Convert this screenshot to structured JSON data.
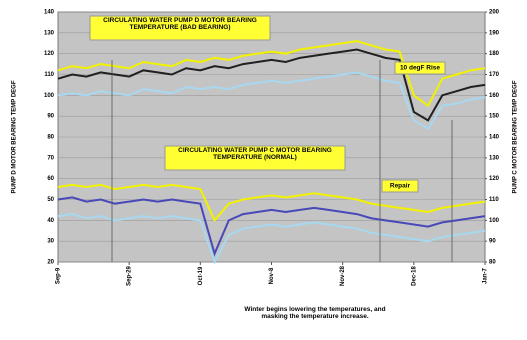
{
  "chart_data": {
    "type": "line",
    "y_label": "PUMP D MOTOR BEARING TEMP DEGF",
    "y2_label": "PUMP C MOTOR BEARING TEMP DEGF",
    "annotations": [
      "CIRCULATING WATER PUMP D MOTOR BEARING TEMPERATURE (BAD BEARING)",
      "CIRCULATING WATER PUMP C MOTOR BEARING TEMPERATURE (NORMAL)",
      "10 degF Rise",
      "Repair",
      "Winter begins lowering the temperatures, and masking the temperature increase."
    ],
    "x": [
      0,
      4,
      8,
      12,
      16,
      20,
      24,
      28,
      32,
      36,
      40,
      44,
      48,
      52,
      56,
      60,
      64,
      68,
      72,
      76,
      80,
      84,
      88,
      92,
      96,
      100,
      104,
      108,
      112,
      116,
      120
    ],
    "xlim": [
      0,
      120
    ],
    "xticks": [
      {
        "value": 0,
        "label": "Sep-9"
      },
      {
        "value": 20,
        "label": "Sep-29"
      },
      {
        "value": 40,
        "label": "Oct-19"
      },
      {
        "value": 60,
        "label": "Nov-8"
      },
      {
        "value": 80,
        "label": "Nov-28"
      },
      {
        "value": 100,
        "label": "Dec-18"
      },
      {
        "value": 120,
        "label": "Jan-7"
      }
    ],
    "ylim": [
      20,
      140
    ],
    "yticks": [
      20,
      30,
      40,
      50,
      60,
      70,
      80,
      90,
      100,
      110,
      120,
      130,
      140
    ],
    "y2lim": [
      80,
      200
    ],
    "y2ticks": [
      80,
      90,
      100,
      110,
      120,
      130,
      140,
      150,
      160,
      170,
      180,
      190,
      200
    ],
    "grid": true,
    "series": [
      {
        "color": "#f2f200",
        "values": [
          112,
          114,
          113,
          115,
          114,
          113,
          116,
          115,
          114,
          117,
          116,
          118,
          117,
          119,
          120,
          121,
          120,
          122,
          123,
          124,
          125,
          126,
          124,
          122,
          121,
          100,
          95,
          108,
          110,
          112,
          113
        ]
      },
      {
        "color": "#202020",
        "values": [
          108,
          110,
          109,
          111,
          110,
          109,
          112,
          111,
          110,
          113,
          112,
          114,
          113,
          115,
          116,
          117,
          116,
          118,
          119,
          120,
          121,
          122,
          120,
          118,
          117,
          92,
          88,
          100,
          102,
          104,
          105
        ]
      },
      {
        "color": "#a8d8f0",
        "values": [
          100,
          101,
          100,
          102,
          101,
          100,
          103,
          102,
          101,
          104,
          103,
          104,
          103,
          105,
          106,
          107,
          106,
          107,
          108,
          109,
          110,
          111,
          109,
          107,
          106,
          88,
          84,
          95,
          96,
          98,
          99
        ]
      },
      {
        "color": "#f2f200",
        "axis": "y2",
        "values": [
          116,
          117,
          116,
          117,
          115,
          116,
          117,
          116,
          117,
          116,
          115,
          100,
          108,
          110,
          111,
          112,
          111,
          112,
          113,
          112,
          111,
          110,
          108,
          107,
          106,
          105,
          104,
          106,
          107,
          108,
          109
        ]
      },
      {
        "color": "#4848b8",
        "axis": "y2",
        "values": [
          110,
          111,
          109,
          110,
          108,
          109,
          110,
          109,
          110,
          109,
          108,
          84,
          100,
          103,
          104,
          105,
          104,
          105,
          106,
          105,
          104,
          103,
          101,
          100,
          99,
          98,
          97,
          99,
          100,
          101,
          102
        ]
      },
      {
        "color": "#a8d8f0",
        "axis": "y2",
        "values": [
          102,
          103,
          101,
          102,
          100,
          101,
          102,
          101,
          102,
          101,
          100,
          80,
          93,
          96,
          97,
          98,
          97,
          98,
          99,
          98,
          97,
          96,
          94,
          93,
          92,
          91,
          90,
          92,
          93,
          94,
          95
        ]
      }
    ]
  }
}
